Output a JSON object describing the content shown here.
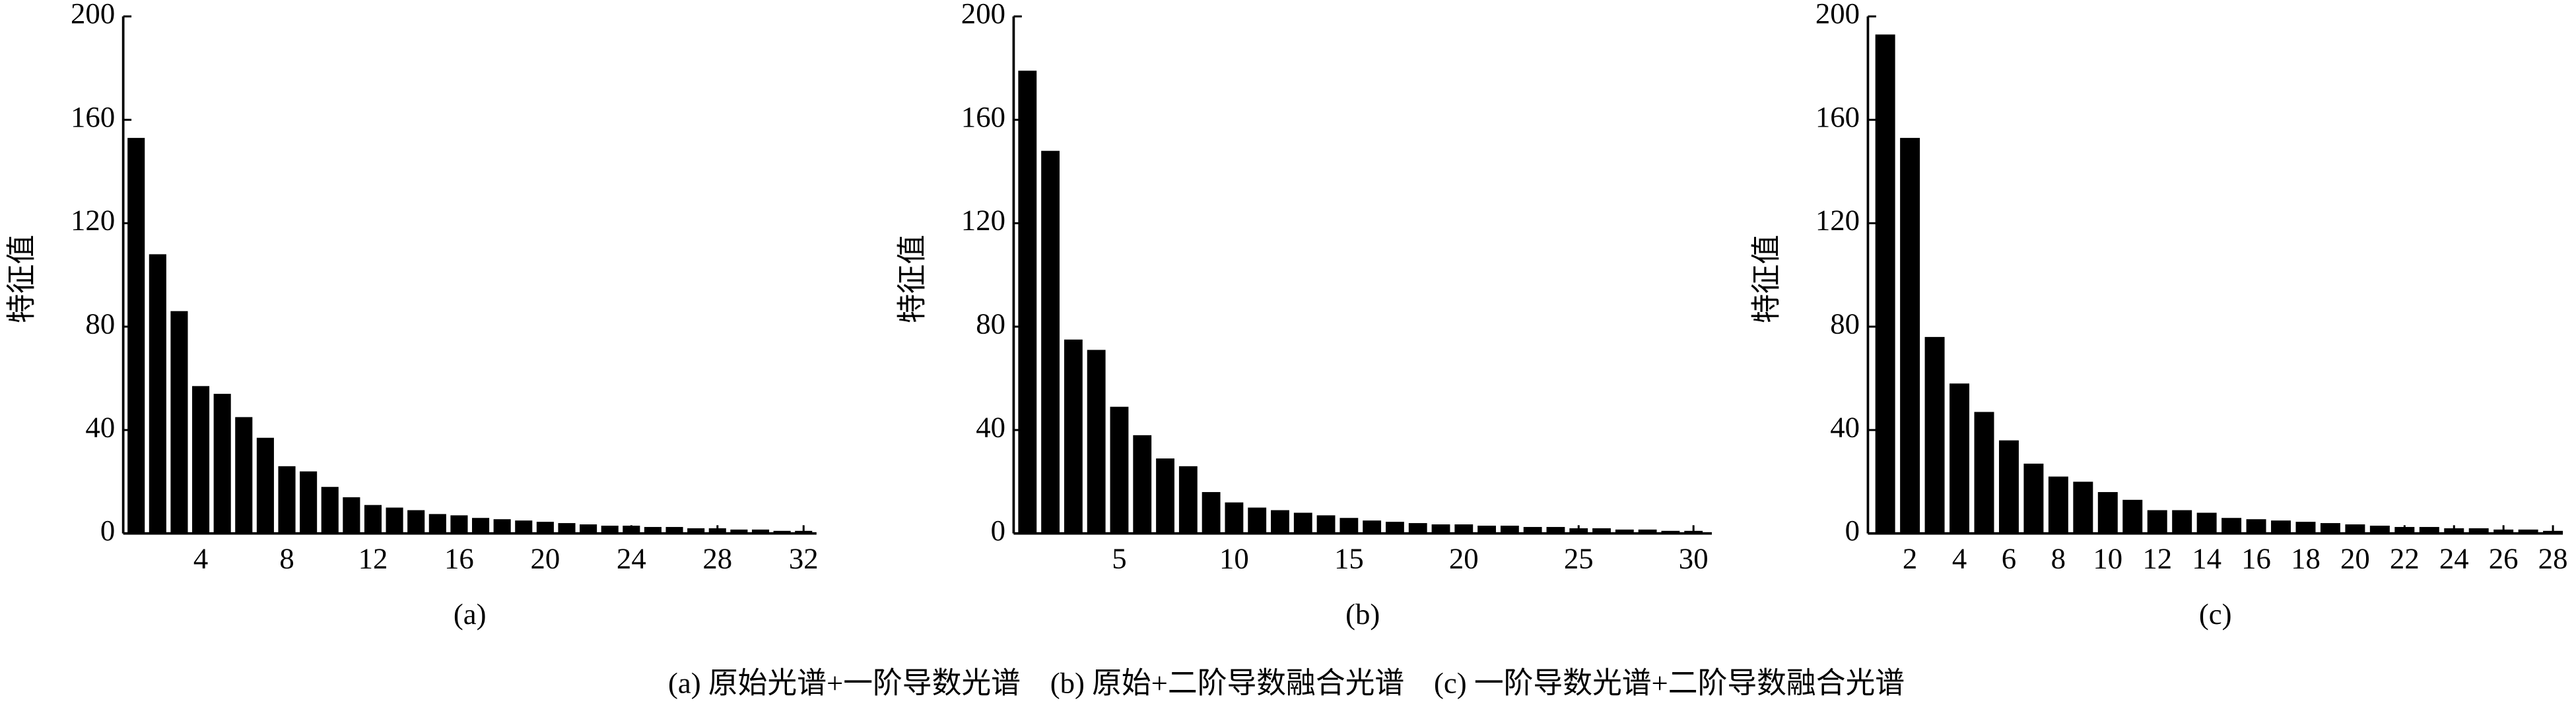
{
  "chart_data": [
    {
      "type": "bar",
      "label": "(a)",
      "y_label": "特征值",
      "color": "#000000",
      "x": [
        1,
        2,
        3,
        4,
        5,
        6,
        7,
        8,
        9,
        10,
        11,
        12,
        13,
        14,
        15,
        16,
        17,
        18,
        19,
        20,
        21,
        22,
        23,
        24,
        25,
        26,
        27,
        28,
        29,
        30,
        31,
        32
      ],
      "values": [
        153,
        108,
        86,
        57,
        54,
        45,
        37,
        26,
        24,
        18,
        14,
        11,
        10,
        9,
        7.5,
        7,
        6,
        5.5,
        5,
        4.5,
        4,
        3.5,
        3,
        3,
        2.5,
        2.5,
        2,
        2,
        1.5,
        1.5,
        1,
        1
      ],
      "xlim": [
        0.4,
        32.6
      ],
      "xticks": [
        4,
        8,
        12,
        16,
        20,
        24,
        28,
        32
      ],
      "ylim": [
        0,
        200
      ],
      "yticks": [
        0,
        40,
        80,
        120,
        160,
        200
      ]
    },
    {
      "type": "bar",
      "label": "(b)",
      "y_label": "特征值",
      "color": "#000000",
      "x": [
        1,
        2,
        3,
        4,
        5,
        6,
        7,
        8,
        9,
        10,
        11,
        12,
        13,
        14,
        15,
        16,
        17,
        18,
        19,
        20,
        21,
        22,
        23,
        24,
        25,
        26,
        27,
        28,
        29,
        30
      ],
      "values": [
        179,
        148,
        75,
        71,
        49,
        38,
        29,
        26,
        16,
        12,
        10,
        9,
        8,
        7,
        6,
        5,
        4.5,
        4,
        3.5,
        3.5,
        3,
        3,
        2.5,
        2.5,
        2,
        2,
        1.5,
        1.5,
        1,
        1
      ],
      "xlim": [
        0.4,
        30.8
      ],
      "xticks": [
        5,
        10,
        15,
        20,
        25,
        30
      ],
      "ylim": [
        0,
        200
      ],
      "yticks": [
        0,
        40,
        80,
        120,
        160,
        200
      ]
    },
    {
      "type": "bar",
      "label": "(c)",
      "y_label": "特征值",
      "color": "#000000",
      "x": [
        1,
        2,
        3,
        4,
        5,
        6,
        7,
        8,
        9,
        10,
        11,
        12,
        13,
        14,
        15,
        16,
        17,
        18,
        19,
        20,
        21,
        22,
        23,
        24,
        25,
        26,
        27,
        28
      ],
      "values": [
        193,
        153,
        76,
        58,
        47,
        36,
        27,
        22,
        20,
        16,
        13,
        9,
        9,
        8,
        6,
        5.5,
        5,
        4.5,
        4,
        3.5,
        3,
        2.5,
        2.5,
        2,
        2,
        1.5,
        1.5,
        1
      ],
      "xlim": [
        0.3,
        28.4
      ],
      "xticks": [
        2,
        4,
        6,
        8,
        10,
        12,
        14,
        16,
        18,
        20,
        22,
        24,
        26,
        28
      ],
      "ylim": [
        0,
        200
      ],
      "yticks": [
        0,
        40,
        80,
        120,
        160,
        200
      ]
    }
  ],
  "caption": "(a) 原始光谱+一阶导数光谱　(b) 原始+二阶导数融合光谱　(c) 一阶导数光谱+二阶导数融合光谱"
}
